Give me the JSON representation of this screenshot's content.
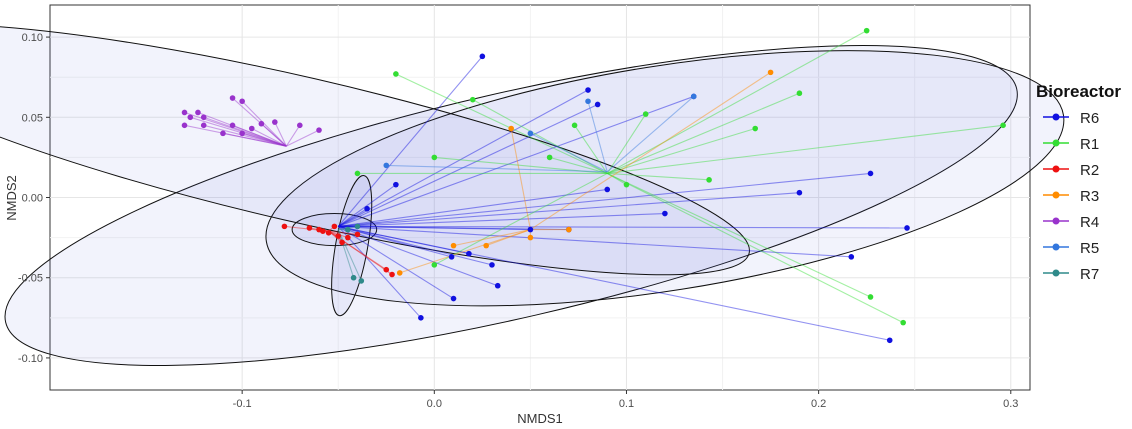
{
  "chart_data": {
    "type": "scatter",
    "subtype": "nmds-spider-ellipse",
    "title": "",
    "xlabel": "NMDS1",
    "ylabel": "NMDS2",
    "xlim": [
      -0.2,
      0.31
    ],
    "ylim": [
      -0.12,
      0.12
    ],
    "x_ticks": [
      -0.1,
      0.0,
      0.1,
      0.2,
      0.3
    ],
    "x_tick_labels": [
      "-0.1",
      "0.0",
      "0.1",
      "0.2",
      "0.3"
    ],
    "y_ticks": [
      -0.1,
      -0.05,
      0.0,
      0.05,
      0.1
    ],
    "y_tick_labels": [
      "-0.10",
      "-0.05",
      "0.00",
      "0.05",
      "0.10"
    ],
    "grid": true,
    "legend": {
      "title": "Bioreactor",
      "position": "right"
    },
    "series": [
      {
        "name": "R6",
        "color": "#1010e0",
        "centroid": [
          -0.05,
          -0.018
        ],
        "ellipse": {
          "cx": 0.04,
          "cy": -0.005,
          "rx": 0.27,
          "ry": 0.07,
          "angle": 13
        },
        "points": [
          [
            0.025,
            0.088
          ],
          [
            0.08,
            0.067
          ],
          [
            0.085,
            0.058
          ],
          [
            -0.02,
            0.008
          ],
          [
            0.227,
            0.015
          ],
          [
            0.19,
            0.003
          ],
          [
            0.246,
            -0.019
          ],
          [
            0.217,
            -0.037
          ],
          [
            0.237,
            -0.089
          ],
          [
            0.033,
            -0.055
          ],
          [
            0.01,
            -0.063
          ],
          [
            -0.007,
            -0.075
          ],
          [
            0.03,
            -0.042
          ],
          [
            0.018,
            -0.035
          ],
          [
            0.009,
            -0.037
          ],
          [
            -0.04,
            -0.018
          ],
          [
            0.12,
            -0.01
          ],
          [
            0.05,
            -0.02
          ],
          [
            0.07,
            -0.02
          ],
          [
            -0.035,
            -0.007
          ],
          [
            0.135,
            0.063
          ],
          [
            0.09,
            0.005
          ]
        ]
      },
      {
        "name": "R1",
        "color": "#33dd33",
        "centroid": [
          0.09,
          0.015
        ],
        "ellipse": {
          "cx": 0.12,
          "cy": 0.012,
          "rx": 0.21,
          "ry": 0.07,
          "angle": 9
        },
        "points": [
          [
            0.225,
            0.104
          ],
          [
            0.296,
            0.045
          ],
          [
            0.19,
            0.065
          ],
          [
            0.167,
            0.043
          ],
          [
            -0.02,
            0.077
          ],
          [
            0.02,
            0.061
          ],
          [
            0.143,
            0.011
          ],
          [
            0.1,
            0.008
          ],
          [
            0.227,
            -0.062
          ],
          [
            0.244,
            -0.078
          ],
          [
            0.0,
            0.025
          ],
          [
            0.073,
            0.045
          ],
          [
            0.11,
            0.052
          ],
          [
            0.06,
            0.025
          ],
          [
            -0.04,
            0.015
          ],
          [
            0.0,
            -0.042
          ]
        ]
      },
      {
        "name": "R2",
        "color": "#ee1111",
        "centroid": [
          -0.055,
          -0.021
        ],
        "ellipse": {
          "cx": -0.052,
          "cy": -0.02,
          "rx": 0.022,
          "ry": 0.01,
          "angle": 0
        },
        "points": [
          [
            -0.078,
            -0.018
          ],
          [
            -0.065,
            -0.019
          ],
          [
            -0.06,
            -0.02
          ],
          [
            -0.055,
            -0.022
          ],
          [
            -0.05,
            -0.024
          ],
          [
            -0.045,
            -0.025
          ],
          [
            -0.058,
            -0.021
          ],
          [
            -0.052,
            -0.018
          ],
          [
            -0.04,
            -0.023
          ],
          [
            -0.048,
            -0.028
          ],
          [
            -0.022,
            -0.048
          ],
          [
            -0.025,
            -0.045
          ]
        ]
      },
      {
        "name": "R3",
        "color": "#ff8c00",
        "centroid": [
          0.05,
          -0.02
        ],
        "ellipse": null,
        "points": [
          [
            0.175,
            0.078
          ],
          [
            -0.018,
            -0.047
          ],
          [
            0.027,
            -0.03
          ],
          [
            0.04,
            0.043
          ],
          [
            0.01,
            -0.03
          ],
          [
            0.05,
            -0.025
          ],
          [
            0.07,
            -0.02
          ]
        ]
      },
      {
        "name": "R4",
        "color": "#9933cc",
        "centroid": [
          -0.077,
          0.032
        ],
        "ellipse": {
          "cx": -0.07,
          "cy": 0.03,
          "rx": 0.24,
          "ry": 0.045,
          "angle": -13
        },
        "points": [
          [
            -0.13,
            0.053
          ],
          [
            -0.123,
            0.053
          ],
          [
            -0.105,
            0.062
          ],
          [
            -0.1,
            0.06
          ],
          [
            -0.127,
            0.05
          ],
          [
            -0.13,
            0.045
          ],
          [
            -0.12,
            0.045
          ],
          [
            -0.09,
            0.046
          ],
          [
            -0.083,
            0.047
          ],
          [
            -0.1,
            0.04
          ],
          [
            -0.11,
            0.04
          ],
          [
            -0.095,
            0.043
          ],
          [
            -0.12,
            0.05
          ],
          [
            -0.07,
            0.045
          ],
          [
            -0.06,
            0.042
          ],
          [
            -0.105,
            0.045
          ]
        ]
      },
      {
        "name": "R5",
        "color": "#3377dd",
        "centroid": [
          0.09,
          0.016
        ],
        "ellipse": null,
        "points": [
          [
            0.135,
            0.063
          ],
          [
            0.08,
            0.06
          ],
          [
            0.05,
            0.04
          ],
          [
            -0.025,
            0.02
          ]
        ]
      },
      {
        "name": "R7",
        "color": "#2f8a8a",
        "centroid": [
          -0.05,
          -0.02
        ],
        "ellipse": {
          "cx": -0.043,
          "cy": -0.03,
          "rx": 0.037,
          "ry": 0.01,
          "angle": 80
        },
        "points": [
          [
            -0.042,
            -0.05
          ],
          [
            -0.038,
            -0.052
          ],
          [
            -0.045,
            -0.02
          ],
          [
            -0.04,
            -0.018
          ]
        ]
      }
    ]
  }
}
